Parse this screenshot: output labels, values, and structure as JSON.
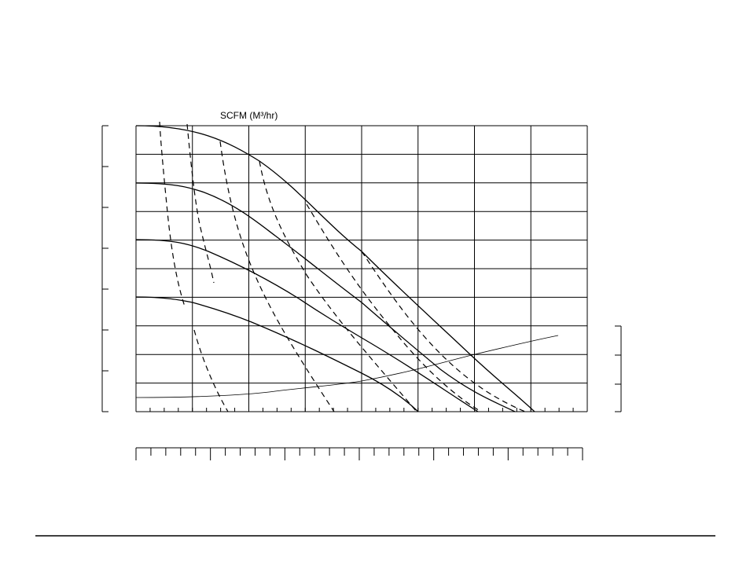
{
  "axis_label": "SCFM (M³/hr)"
}
